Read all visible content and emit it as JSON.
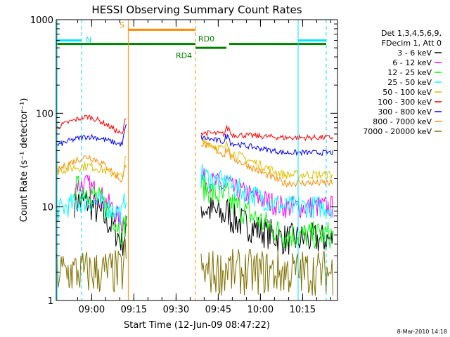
{
  "chart_data": {
    "type": "line",
    "title": "HESSI Observing Summary Count Rates",
    "xlabel": "Start Time (12-Jun-09 08:47:22)",
    "ylabel": "Count Rate (s⁻¹ detector⁻¹)",
    "yscale": "log",
    "ylim": [
      1,
      1000
    ],
    "xlim_minutes_from_start": [
      0,
      100
    ],
    "x_ticks": [
      "09:00",
      "09:15",
      "09:30",
      "09:45",
      "10:00",
      "10:15"
    ],
    "x_tick_minutes": [
      12.6,
      27.6,
      42.6,
      57.6,
      72.6,
      87.6
    ],
    "y_ticks": [
      "1",
      "10",
      "100",
      "1000"
    ],
    "y_tick_values": [
      1,
      10,
      100,
      1000
    ],
    "legend_placement": "right",
    "legend_header": [
      "Det 1,3,4,5,6,9,",
      "FDecim 1, Att 0"
    ],
    "footer_date": "8-Mar-2010 14:18",
    "flags": [
      {
        "label": "N",
        "color": "#00e5ff",
        "segments": [
          [
            0,
            9
          ],
          [
            86,
            96
          ]
        ]
      },
      {
        "label": "S",
        "color": "#ff8c00",
        "segments": [
          [
            25.6,
            49.5
          ]
        ]
      },
      {
        "label": "RD4",
        "color": "#008000",
        "segments": [
          [
            0,
            49.5
          ]
        ]
      },
      {
        "label": "RD0",
        "color": "#008000",
        "segments": [
          [
            49.5,
            60.5
          ],
          [
            61.5,
            96
          ]
        ]
      }
    ],
    "series": [
      {
        "name": "3 - 6 keV",
        "color": "#000000"
      },
      {
        "name": "6 - 12 keV",
        "color": "#ff00ff"
      },
      {
        "name": "12 - 25 keV",
        "color": "#00ff00"
      },
      {
        "name": "25 - 50 keV",
        "color": "#00ffff"
      },
      {
        "name": "50 - 100 keV",
        "color": "#e0c000"
      },
      {
        "name": "100 - 300 keV",
        "color": "#ff0000"
      },
      {
        "name": "300 - 800 keV",
        "color": "#0000ff"
      },
      {
        "name": "800 - 7000 keV",
        "color": "#ff8c00"
      },
      {
        "name": "7000 - 20000 keV",
        "color": "#807000"
      }
    ]
  }
}
